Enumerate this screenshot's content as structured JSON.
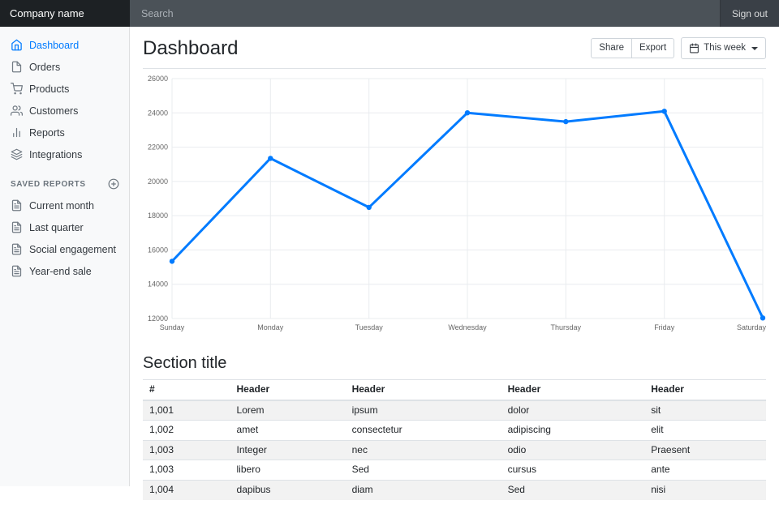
{
  "navbar": {
    "brand": "Company name",
    "search_placeholder": "Search",
    "sign_out": "Sign out"
  },
  "sidebar": {
    "items": [
      {
        "label": "Dashboard",
        "icon": "home",
        "active": true
      },
      {
        "label": "Orders",
        "icon": "file",
        "active": false
      },
      {
        "label": "Products",
        "icon": "cart",
        "active": false
      },
      {
        "label": "Customers",
        "icon": "users",
        "active": false
      },
      {
        "label": "Reports",
        "icon": "bar-chart",
        "active": false
      },
      {
        "label": "Integrations",
        "icon": "layers",
        "active": false
      }
    ],
    "saved_reports_heading": "Saved reports",
    "saved_reports": [
      {
        "label": "Current month",
        "icon": "file-text"
      },
      {
        "label": "Last quarter",
        "icon": "file-text"
      },
      {
        "label": "Social engagement",
        "icon": "file-text"
      },
      {
        "label": "Year-end sale",
        "icon": "file-text"
      }
    ]
  },
  "main": {
    "title": "Dashboard",
    "toolbar": {
      "share_label": "Share",
      "export_label": "Export",
      "period_label": "This week"
    },
    "section_title": "Section title"
  },
  "chart_data": {
    "type": "line",
    "categories": [
      "Sunday",
      "Monday",
      "Tuesday",
      "Wednesday",
      "Thursday",
      "Friday",
      "Saturday"
    ],
    "values": [
      15339,
      21345,
      18483,
      24003,
      23489,
      24092,
      12034
    ],
    "title": "",
    "xlabel": "",
    "ylabel": "",
    "ylim": [
      12000,
      26000
    ],
    "ytick_step": 2000,
    "grid": true,
    "legend": "none",
    "line_color": "#007bff",
    "grid_color": "#e9ecef",
    "tick_label_color": "#666666"
  },
  "table": {
    "headers": [
      "#",
      "Header",
      "Header",
      "Header",
      "Header"
    ],
    "rows": [
      [
        "1,001",
        "Lorem",
        "ipsum",
        "dolor",
        "sit"
      ],
      [
        "1,002",
        "amet",
        "consectetur",
        "adipiscing",
        "elit"
      ],
      [
        "1,003",
        "Integer",
        "nec",
        "odio",
        "Praesent"
      ],
      [
        "1,003",
        "libero",
        "Sed",
        "cursus",
        "ante"
      ],
      [
        "1,004",
        "dapibus",
        "diam",
        "Sed",
        "nisi"
      ]
    ]
  }
}
